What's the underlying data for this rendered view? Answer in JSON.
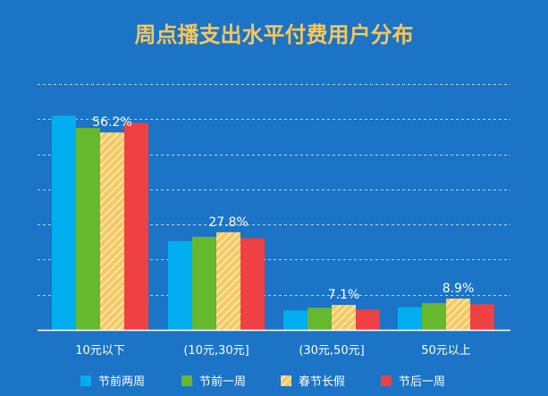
{
  "chart_data": {
    "type": "bar",
    "title": "周点播支出水平付费用户分布",
    "categories": [
      "10元以下",
      "(10元,30元]",
      "(30元,50元]",
      "50元以上"
    ],
    "series": [
      {
        "name": "节前两周",
        "values": [
          61.0,
          25.3,
          5.5,
          6.5
        ],
        "color": "#00aeef",
        "pattern": "solid"
      },
      {
        "name": "节前一周",
        "values": [
          57.5,
          26.5,
          6.3,
          7.6
        ],
        "color": "#66b82f",
        "pattern": "solid"
      },
      {
        "name": "春节长假",
        "values": [
          56.2,
          27.8,
          7.1,
          8.9
        ],
        "color": "#f9c85e",
        "pattern": "hatch"
      },
      {
        "name": "节后一周",
        "values": [
          58.9,
          26.1,
          5.8,
          7.3
        ],
        "color": "#ef4043",
        "pattern": "solid"
      }
    ],
    "data_labels": [
      {
        "category_index": 0,
        "series_index": 2,
        "text": "56.2%"
      },
      {
        "category_index": 1,
        "series_index": 2,
        "text": "27.8%"
      },
      {
        "category_index": 2,
        "series_index": 2,
        "text": "7.1%"
      },
      {
        "category_index": 3,
        "series_index": 2,
        "text": "8.9%"
      }
    ],
    "ylim": [
      0,
      70
    ],
    "grid": true,
    "legend_position": "bottom",
    "xlabel": "",
    "ylabel": ""
  },
  "colors": {
    "background": "#1b74c6",
    "title": "#f7c65b",
    "text": "#ffffff",
    "grid": "#b8d4ef",
    "axis": "#ffffff"
  }
}
